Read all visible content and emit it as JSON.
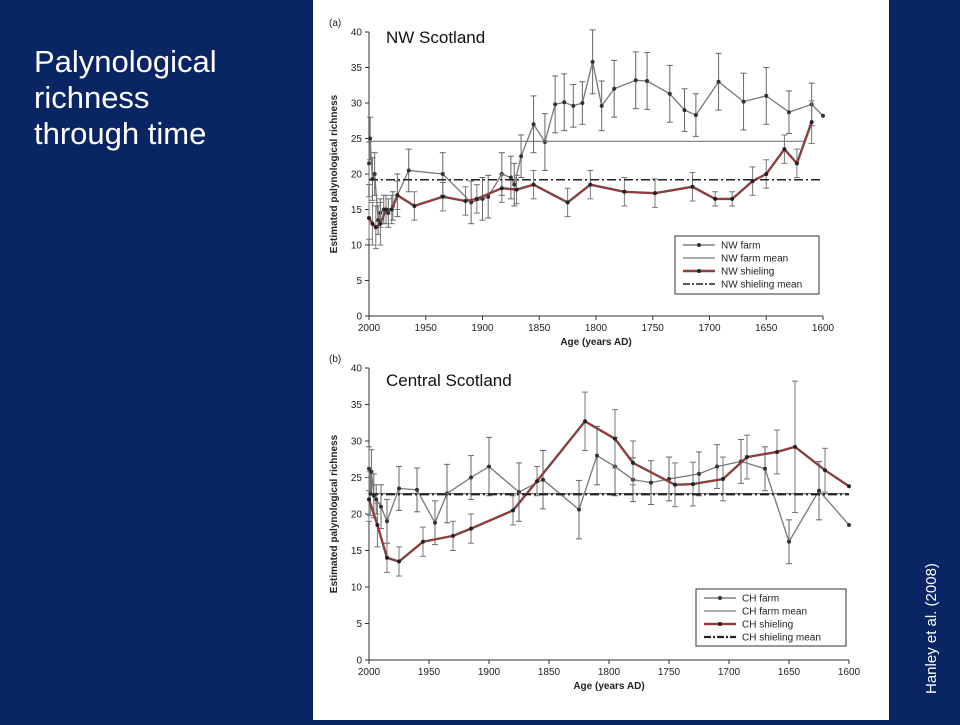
{
  "slide": {
    "title": "Palynological\nrichness\nthrough time",
    "citation": "Hanley et al. (2008)"
  },
  "colors": {
    "background": "#0a2563",
    "farm": "#555555",
    "shieling": "#d62020",
    "text": "#ffffff"
  },
  "chart_data": [
    {
      "type": "line",
      "panel_label": "(a)",
      "region_label": "NW Scotland",
      "xlabel": "Age (years AD)",
      "ylabel": "Estimated palynological richness",
      "xlim": [
        2000,
        1600
      ],
      "ylim": [
        0,
        40
      ],
      "xticks": [
        2000,
        1950,
        1900,
        1850,
        1800,
        1750,
        1700,
        1650,
        1600
      ],
      "yticks": [
        0,
        5,
        10,
        15,
        20,
        25,
        30,
        35,
        40
      ],
      "legend_position": "bottom-right",
      "legend": [
        "NW farm",
        "NW farm mean",
        "NW shieling",
        "NW shieling mean"
      ],
      "series": [
        {
          "name": "NW farm",
          "style": "line-markers-errorbars",
          "x": [
            2000,
            1999,
            1997,
            1995,
            1992,
            1990,
            1987,
            1983,
            1979,
            1975,
            1965,
            1935,
            1910,
            1900,
            1895,
            1883,
            1875,
            1872,
            1866,
            1855,
            1845,
            1836,
            1828,
            1820,
            1812,
            1803,
            1795,
            1784,
            1765,
            1755,
            1735,
            1722,
            1712,
            1692,
            1670,
            1650,
            1630,
            1610,
            1600
          ],
          "y": [
            21.5,
            25,
            19.3,
            20,
            13.5,
            14.5,
            15,
            14.5,
            15.5,
            17,
            20.5,
            20,
            16,
            16.5,
            16.8,
            20,
            19.5,
            18.5,
            22.5,
            27,
            24.5,
            29.8,
            30.1,
            29.6,
            30,
            35.8,
            29.6,
            32,
            33.2,
            33.1,
            31.3,
            29,
            28.3,
            33,
            30.2,
            31,
            28.7,
            29.8,
            28.2
          ],
          "err": [
            3,
            3,
            3,
            3,
            2,
            2,
            2,
            2,
            2,
            3,
            3,
            3,
            3,
            3,
            3,
            3,
            3,
            3,
            3,
            4,
            4,
            4,
            4,
            3,
            3,
            4.5,
            3.5,
            4,
            4,
            4,
            4,
            3,
            3,
            4,
            4,
            4,
            3,
            3,
            0
          ]
        },
        {
          "name": "NW farm mean",
          "style": "solid",
          "x": [
            2000,
            1615
          ],
          "y": [
            24.6,
            24.6
          ]
        },
        {
          "name": "NW shieling",
          "style": "red-dashed-markers",
          "x": [
            2000,
            1997,
            1994,
            1990,
            1985,
            1980,
            1975,
            1960,
            1935,
            1915,
            1905,
            1883,
            1870,
            1855,
            1825,
            1805,
            1775,
            1748,
            1715,
            1695,
            1680,
            1662,
            1650,
            1634,
            1623,
            1610
          ],
          "y": [
            13.8,
            13,
            12.5,
            13,
            15,
            15,
            17,
            15.5,
            16.8,
            16.2,
            16.5,
            18,
            17.8,
            18.5,
            16,
            18.5,
            17.5,
            17.3,
            18.2,
            16.5,
            16.5,
            19,
            20,
            23.5,
            21.5,
            27.3
          ],
          "err": [
            3,
            3,
            3,
            3,
            2,
            2,
            2,
            2,
            2,
            2,
            2,
            2,
            2,
            2,
            2,
            2,
            2,
            2,
            2,
            1,
            1,
            2,
            2,
            2,
            2,
            3
          ]
        },
        {
          "name": "NW shieling mean",
          "style": "dashdot",
          "x": [
            2000,
            1600
          ],
          "y": [
            19.2,
            19.2
          ]
        }
      ]
    },
    {
      "type": "line",
      "panel_label": "(b)",
      "region_label": "Central Scotland",
      "xlabel": "Age (years AD)",
      "ylabel": "Estimated palynological richness",
      "xlim": [
        2000,
        1600
      ],
      "ylim": [
        0,
        40
      ],
      "xticks": [
        2000,
        1950,
        1900,
        1850,
        1800,
        1750,
        1700,
        1650,
        1600
      ],
      "yticks": [
        0,
        5,
        10,
        15,
        20,
        25,
        30,
        35,
        40
      ],
      "legend_position": "bottom-right",
      "legend": [
        "CH farm",
        "CH farm mean",
        "CH shieling",
        "CH shieling mean"
      ],
      "series": [
        {
          "name": "CH farm",
          "style": "line-markers-errorbars",
          "x": [
            2000,
            1999,
            1998,
            1996,
            1994,
            1990,
            1985,
            1975,
            1960,
            1945,
            1935,
            1915,
            1900,
            1875,
            1855,
            1825,
            1810,
            1795,
            1780,
            1765,
            1750,
            1725,
            1710,
            1690,
            1670,
            1650,
            1625,
            1600
          ],
          "y": [
            26.2,
            22.8,
            25.8,
            22.5,
            22,
            21,
            19,
            23.5,
            23.3,
            18.8,
            22.8,
            25,
            26.5,
            23,
            24.7,
            20.6,
            28,
            26.5,
            24.7,
            24.3,
            24.8,
            25.5,
            26.5,
            27.2,
            26.2,
            16.2,
            23.2,
            18.5
          ],
          "err": [
            3,
            3,
            3,
            3,
            2,
            3,
            3,
            3,
            3,
            3,
            4,
            3,
            4,
            4,
            4,
            4,
            4,
            4,
            3,
            3,
            3,
            3,
            3,
            3,
            3,
            3,
            4,
            0
          ]
        },
        {
          "name": "CH farm mean",
          "style": "solid",
          "x": [
            2000,
            1600
          ],
          "y": [
            22.8,
            22.8
          ]
        },
        {
          "name": "CH shieling",
          "style": "red-dashed-markers",
          "x": [
            2000,
            1993,
            1985,
            1975,
            1955,
            1930,
            1915,
            1880,
            1860,
            1820,
            1795,
            1780,
            1745,
            1730,
            1705,
            1685,
            1660,
            1645,
            1620,
            1600
          ],
          "y": [
            22,
            18.5,
            14,
            13.5,
            16.2,
            17,
            18,
            20.5,
            24.5,
            32.7,
            30.3,
            27,
            24,
            24.1,
            24.8,
            27.8,
            28.5,
            29.2,
            26,
            23.8
          ],
          "err": [
            3,
            3,
            2,
            2,
            2,
            2,
            2,
            2,
            2,
            4,
            4,
            3,
            3,
            3,
            3,
            3,
            3,
            9,
            3,
            0
          ]
        },
        {
          "name": "CH shieling mean",
          "style": "dashdot-thick",
          "x": [
            2000,
            1600
          ],
          "y": [
            22.7,
            22.7
          ]
        }
      ]
    }
  ]
}
